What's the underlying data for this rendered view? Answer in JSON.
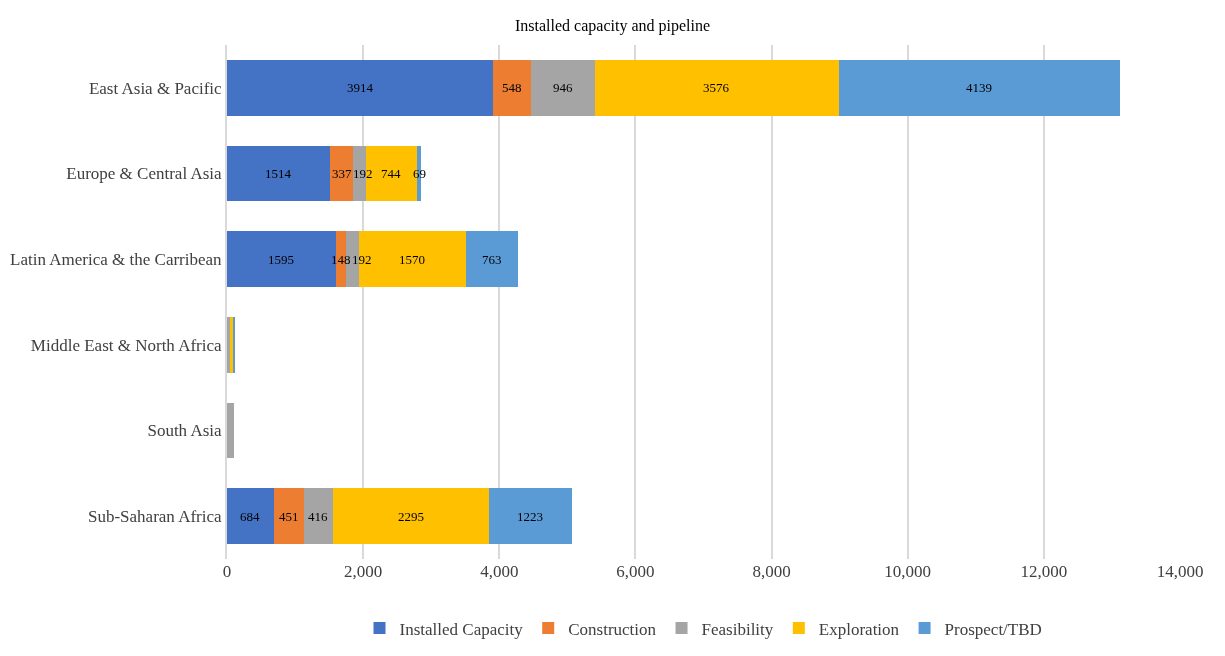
{
  "chart_data": {
    "type": "bar",
    "orientation": "horizontal",
    "stacked": true,
    "title": "Installed capacity and pipeline",
    "categories": [
      "East Asia & Pacific",
      "Europe & Central Asia",
      "Latin America & the Carribean",
      "Middle East & North Africa",
      "South Asia",
      "Sub-Saharan Africa"
    ],
    "series": [
      {
        "name": "Installed Capacity",
        "color": "#4472c4",
        "values": [
          3914,
          1514,
          1595,
          0,
          0,
          684
        ],
        "value_labels": [
          "3914",
          "1514",
          "1595",
          null,
          null,
          "684"
        ]
      },
      {
        "name": "Construction",
        "color": "#ed7d31",
        "values": [
          548,
          337,
          148,
          0,
          0,
          451
        ],
        "value_labels": [
          "548",
          "337",
          "148",
          null,
          null,
          "451"
        ]
      },
      {
        "name": "Feasibility",
        "color": "#a5a5a5",
        "values": [
          946,
          192,
          192,
          40,
          110,
          416
        ],
        "value_labels": [
          "946",
          "192",
          "192",
          null,
          null,
          "416"
        ]
      },
      {
        "name": "Exploration",
        "color": "#ffc000",
        "values": [
          3576,
          744,
          1570,
          60,
          0,
          2295
        ],
        "value_labels": [
          "3576",
          "744",
          "1570",
          null,
          null,
          "2295"
        ]
      },
      {
        "name": "Prospect/TBD",
        "color": "#5b9bd5",
        "values": [
          4139,
          69,
          763,
          10,
          0,
          1223
        ],
        "value_labels": [
          "4139",
          "69",
          "763",
          null,
          null,
          "1223"
        ]
      }
    ],
    "xlim": [
      0,
      14000
    ],
    "xticks": [
      {
        "value": 0,
        "label": "0"
      },
      {
        "value": 2000,
        "label": "2,000"
      },
      {
        "value": 4000,
        "label": "4,000"
      },
      {
        "value": 6000,
        "label": "6,000"
      },
      {
        "value": 8000,
        "label": "8,000"
      },
      {
        "value": 10000,
        "label": "10,000"
      },
      {
        "value": 12000,
        "label": "12,000"
      },
      {
        "value": 14000,
        "label": "14,000"
      }
    ],
    "grid": "x",
    "legend": "bottom"
  }
}
